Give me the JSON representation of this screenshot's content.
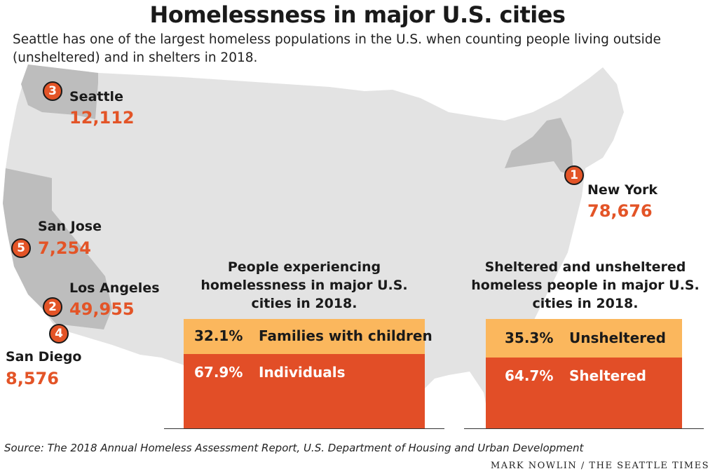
{
  "title": "Homelessness in major U.S. cities",
  "subtitle": "Seattle has one of the largest homeless populations in the U.S. when counting people living outside (unsheltered) and in shelters in 2018.",
  "colors": {
    "map_fill": "#e3e3e3",
    "state_fill": "#bdbdbd",
    "accent": "#e35427",
    "top_segment": "#fbb75d",
    "bottom_segment": "#e24e27"
  },
  "cities": [
    {
      "rank": "3",
      "name": "Seattle",
      "value": "12,112"
    },
    {
      "rank": "1",
      "name": "New York",
      "value": "78,676"
    },
    {
      "rank": "5",
      "name": "San Jose",
      "value": "7,254"
    },
    {
      "rank": "2",
      "name": "Los Angeles",
      "value": "49,955"
    },
    {
      "rank": "4",
      "name": "San Diego",
      "value": "8,576"
    }
  ],
  "chart_data": [
    {
      "type": "bar",
      "title": "People experiencing homelessness in major U.S. cities in 2018.",
      "stacked": true,
      "segments": [
        {
          "name": "Families with children",
          "value": 32.1,
          "label": "32.1%"
        },
        {
          "name": "Individuals",
          "value": 67.9,
          "label": "67.9%"
        }
      ]
    },
    {
      "type": "bar",
      "title": "Sheltered and unsheltered homeless people in major U.S. cities in 2018.",
      "stacked": true,
      "segments": [
        {
          "name": "Unsheltered",
          "value": 35.3,
          "label": "35.3%"
        },
        {
          "name": "Sheltered",
          "value": 64.7,
          "label": "64.7%"
        }
      ]
    }
  ],
  "source": "Source: The 2018 Annual Homeless Assessment Report, U.S. Department of Housing and Urban Development",
  "credit": "MARK NOWLIN / THE SEATTLE TIMES"
}
